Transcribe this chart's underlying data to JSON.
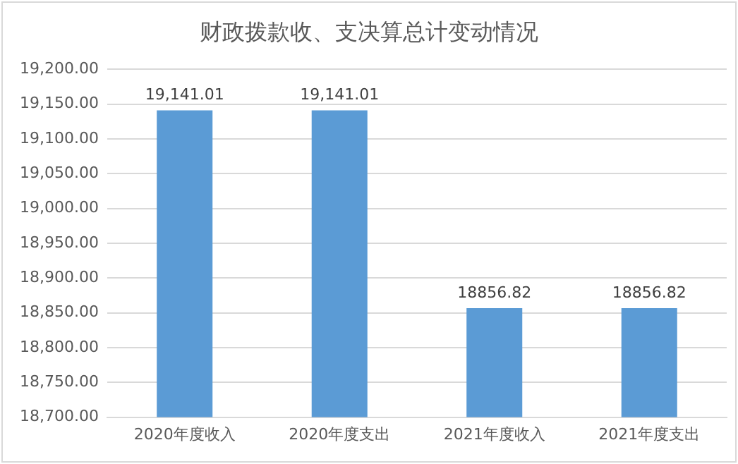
{
  "chart_data": {
    "type": "bar",
    "title": "财政拨款收、支决算总计变动情况",
    "categories": [
      "2020年度收入",
      "2020年度支出",
      "2021年度收入",
      "2021年度支出"
    ],
    "values": [
      19141.01,
      19141.01,
      18856.82,
      18856.82
    ],
    "value_labels": [
      "19,141.01",
      "19,141.01",
      "18856.82",
      "18856.82"
    ],
    "color": "#5b9bd5",
    "ylim": [
      18700,
      19200
    ],
    "yticks": [
      {
        "value": 18700,
        "label": "18,700.00"
      },
      {
        "value": 18750,
        "label": "18,750.00"
      },
      {
        "value": 18800,
        "label": "18,800.00"
      },
      {
        "value": 18850,
        "label": "18,850.00"
      },
      {
        "value": 18900,
        "label": "18,900.00"
      },
      {
        "value": 18950,
        "label": "18,950.00"
      },
      {
        "value": 19000,
        "label": "19,000.00"
      },
      {
        "value": 19050,
        "label": "19,050.00"
      },
      {
        "value": 19100,
        "label": "19,100.00"
      },
      {
        "value": 19150,
        "label": "19,150.00"
      },
      {
        "value": 19200,
        "label": "19,200.00"
      }
    ],
    "grid": "y",
    "legend": false
  }
}
